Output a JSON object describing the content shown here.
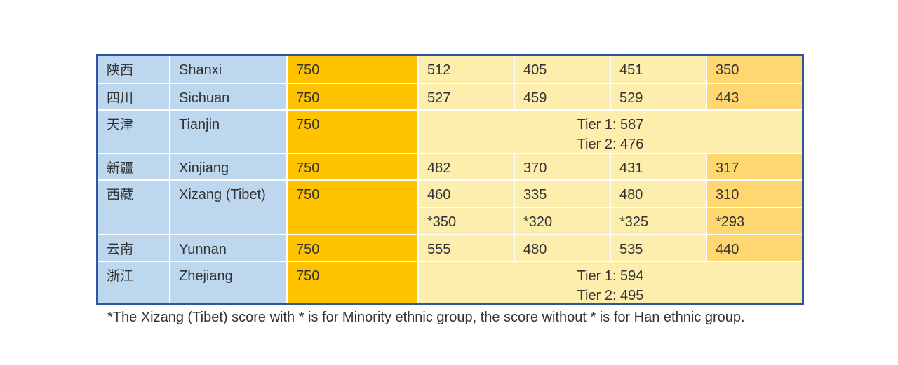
{
  "rows": [
    {
      "cn": "陕西",
      "en": "Shanxi",
      "total": "750",
      "scores": [
        "512",
        "405",
        "451",
        "350"
      ]
    },
    {
      "cn": "四川",
      "en": "Sichuan",
      "total": "750",
      "scores": [
        "527",
        "459",
        "529",
        "443"
      ]
    },
    {
      "cn": "天津",
      "en": "Tianjin",
      "total": "750",
      "tier1": "Tier 1: 587",
      "tier2": "Tier 2: 476"
    },
    {
      "cn": "新疆",
      "en": "Xinjiang",
      "total": "750",
      "scores": [
        "482",
        "370",
        "431",
        "317"
      ]
    },
    {
      "cn": "西藏",
      "en": "Xizang (Tibet)",
      "total": "750",
      "scores": [
        "460",
        "335",
        "480",
        "310"
      ],
      "minority_scores": [
        "*350",
        "*320",
        "*325",
        "*293"
      ]
    },
    {
      "cn": "云南",
      "en": "Yunnan",
      "total": "750",
      "scores": [
        "555",
        "480",
        "535",
        "440"
      ]
    },
    {
      "cn": "浙江",
      "en": "Zhejiang",
      "total": "750",
      "tier1": "Tier 1: 594",
      "tier2": "Tier 2: 495"
    }
  ],
  "footnote": "*The Xizang (Tibet) score with * is for Minority ethnic group, the score without * is for Han ethnic group.",
  "colors": {
    "border": "#2f55a4",
    "province": "#bdd7ee",
    "total": "#fec200",
    "score_light": "#feeeae",
    "score_mid": "#fed770"
  }
}
